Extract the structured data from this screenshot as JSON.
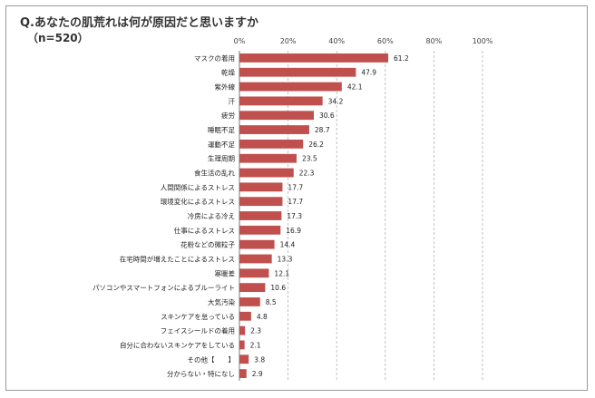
{
  "chart_data": {
    "type": "bar",
    "orientation": "horizontal",
    "title": "Q.あなたの肌荒れは何が原因だと思いますか",
    "subtitle": "（n=520）",
    "xlim": [
      0,
      100
    ],
    "xticks": [
      "0%",
      "20%",
      "40%",
      "60%",
      "80%",
      "100%"
    ],
    "grid": "dashed vertical",
    "bar_color": "#c0504d",
    "categories": [
      "マスクの着用",
      "乾燥",
      "紫外線",
      "汗",
      "疲労",
      "睡眠不足",
      "運動不足",
      "生理周期",
      "食生活の乱れ",
      "人間関係によるストレス",
      "環境変化によるストレス",
      "冷房による冷え",
      "仕事によるストレス",
      "花粉などの微粒子",
      "在宅時間が増えたことによるストレス",
      "寒暖差",
      "パソコンやスマートフォンによるブルーライト",
      "大気汚染",
      "スキンケアを怠っている",
      "フェイスシールドの着用",
      "自分に合わないスキンケアをしている",
      "その他【　　】",
      "分からない・特になし"
    ],
    "values": [
      61.2,
      47.9,
      42.1,
      34.2,
      30.6,
      28.7,
      26.2,
      23.5,
      22.3,
      17.7,
      17.7,
      17.3,
      16.9,
      14.4,
      13.3,
      12.1,
      10.6,
      8.5,
      4.8,
      2.3,
      2.1,
      3.8,
      2.9
    ],
    "value_labels": [
      "61.2",
      "47.9",
      "42.1",
      "34.2",
      "30.6",
      "28.7",
      "26.2",
      "23.5",
      "22.3",
      "17.7",
      "17.7",
      "17.3",
      "16.9",
      "14.4",
      "13.3",
      "12.1",
      "10.6",
      "8.5",
      "4.8",
      "2.3",
      "2.1",
      "3.8",
      "2.9"
    ]
  }
}
